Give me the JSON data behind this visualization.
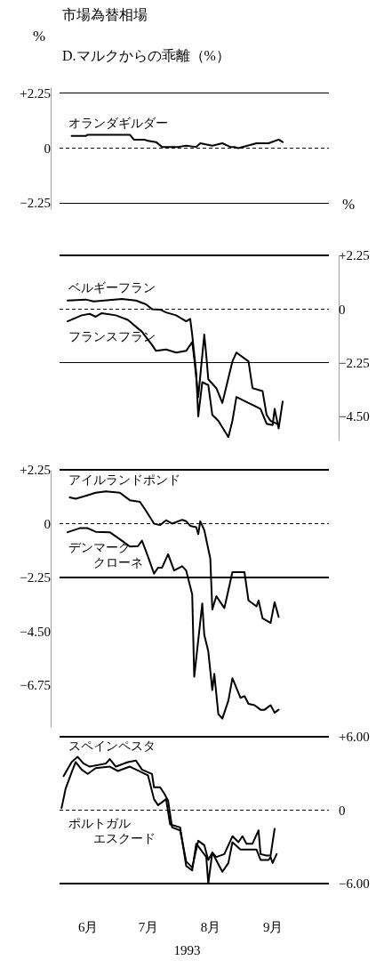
{
  "chart_data": [
    {
      "type": "line",
      "title": "市場為替相場",
      "subtitle": "D.マルクからの乖離（%）",
      "ylabel": "%",
      "xlim": [
        "1993-05-18",
        "1993-09-29"
      ],
      "ylim": [
        -2.5,
        2.5
      ],
      "yticks": [
        {
          "value": 2.25,
          "label": "+2.25"
        },
        0,
        {
          "value": -2.25,
          "label": "−2.25"
        }
      ],
      "tick_labels": "y",
      "ref_lines": [
        {
          "axis": "y",
          "value": 2.25,
          "color": "#000000",
          "line_style": "solid"
        },
        {
          "axis": "y",
          "value": 0,
          "color": "#000000",
          "line_style": "dashed"
        },
        {
          "axis": "y",
          "value": -2.25,
          "color": "#000000",
          "line_style": "solid"
        }
      ],
      "series": [
        {
          "name": "オランダギルダー",
          "color": "#000000",
          "x": [
            "1993-05-24",
            "1993-05-31",
            "1993-06-01",
            "1993-06-22",
            "1993-06-24",
            "1993-06-29",
            "1993-07-01",
            "1993-07-05",
            "1993-07-08",
            "1993-07-16",
            "1993-07-20",
            "1993-07-25",
            "1993-07-27",
            "1993-08-02",
            "1993-08-07",
            "1993-08-11",
            "1993-08-13",
            "1993-08-15",
            "1993-08-24",
            "1993-08-30",
            "1993-09-04",
            "1993-09-06"
          ],
          "values": [
            0.5,
            0.5,
            0.55,
            0.55,
            0.35,
            0.35,
            0.3,
            0.25,
            0.05,
            0.05,
            0.1,
            0.05,
            0.2,
            0.1,
            0.2,
            0.05,
            0.05,
            0,
            0.2,
            0.2,
            0.35,
            0.25
          ]
        }
      ]
    },
    {
      "type": "line",
      "y2label": "%",
      "xlim": [
        "1993-05-18",
        "1993-09-29"
      ],
      "y2lim": [
        -5.5,
        2.25
      ],
      "y2ticks": [
        {
          "value": 2.25,
          "label": "+2.25"
        },
        0,
        {
          "value": -2.25,
          "label": "−2.25"
        },
        {
          "value": -4.5,
          "label": "−4.50"
        }
      ],
      "ref_lines": [
        {
          "axis": "y2",
          "value": 2.25,
          "color": "#000000",
          "line_style": "solid"
        },
        {
          "axis": "y2",
          "value": 0,
          "color": "#000000",
          "line_style": "dashed"
        },
        {
          "axis": "y2",
          "value": -2.25,
          "color": "#000000",
          "line_style": "solid"
        }
      ],
      "series": [
        {
          "name": "ベルギーフラン",
          "color": "#000000",
          "axis": "y2",
          "x": [
            "1993-05-22",
            "1993-05-31",
            "1993-06-04",
            "1993-06-18",
            "1993-06-25",
            "1993-06-30",
            "1993-07-03",
            "1993-07-07",
            "1993-07-10",
            "1993-07-15",
            "1993-07-20",
            "1993-07-22",
            "1993-07-23",
            "1993-07-25",
            "1993-07-26",
            "1993-07-28",
            "1993-07-31",
            "1993-08-02",
            "1993-08-05",
            "1993-08-10",
            "1993-08-12",
            "1993-08-14",
            "1993-08-20",
            "1993-08-23",
            "1993-08-26",
            "1993-08-29",
            "1993-09-01",
            "1993-09-02",
            "1993-09-04",
            "1993-09-06"
          ],
          "values": [
            0.36,
            0.4,
            0.32,
            0.42,
            0.36,
            0.2,
            0,
            -0.02,
            -0.14,
            -0.26,
            -0.51,
            -0.41,
            -1.07,
            -2.69,
            -4.49,
            -3.06,
            -3.18,
            -4.43,
            -4.68,
            -5.36,
            -4.68,
            -3.68,
            -3.93,
            -4.05,
            -4.18,
            -4.8,
            -4.86,
            -4.18,
            -5.0,
            -3.87
          ]
        },
        {
          "name": "フランスフラン",
          "color": "#000000",
          "axis": "y2",
          "x": [
            "1993-05-22",
            "1993-05-29",
            "1993-06-02",
            "1993-06-05",
            "1993-06-08",
            "1993-06-15",
            "1993-06-21",
            "1993-06-28",
            "1993-07-03",
            "1993-07-05",
            "1993-07-10",
            "1993-07-15",
            "1993-07-20",
            "1993-07-23",
            "1993-07-24",
            "1993-07-26",
            "1993-07-29",
            "1993-07-30",
            "1993-07-31",
            "1993-08-04",
            "1993-08-07",
            "1993-08-12",
            "1993-08-14",
            "1993-08-20",
            "1993-08-22",
            "1993-08-27",
            "1993-08-29",
            "1993-08-31",
            "1993-09-03"
          ],
          "values": [
            -0.51,
            -0.26,
            -0.2,
            -0.32,
            -0.17,
            -0.26,
            -0.45,
            -0.95,
            -1.5,
            -1.75,
            -1.69,
            -1.82,
            -1.75,
            -1.38,
            -2.06,
            -3.68,
            -1.07,
            -1.94,
            -2.94,
            -3.31,
            -3.93,
            -2.19,
            -1.82,
            -2.19,
            -3.31,
            -3.43,
            -4.43,
            -4.68,
            -4.8
          ]
        }
      ]
    },
    {
      "type": "line",
      "xlim": [
        "1993-05-18",
        "1993-09-29"
      ],
      "ylim": [
        -8.5,
        2.25
      ],
      "yticks": [
        {
          "value": 2.25,
          "label": "+2.25"
        },
        0,
        {
          "value": -2.25,
          "label": "−2.25"
        },
        {
          "value": -4.5,
          "label": "−4.50"
        },
        {
          "value": -6.75,
          "label": "−6.75"
        }
      ],
      "tick_labels": "y",
      "ref_lines": [
        {
          "axis": "y",
          "value": 2.25,
          "color": "#000000",
          "line_style": "solid"
        },
        {
          "axis": "y",
          "value": 0,
          "color": "#000000",
          "line_style": "dashed"
        },
        {
          "axis": "y",
          "value": -2.25,
          "color": "#000000",
          "line_style": "solid"
        }
      ],
      "series": [
        {
          "name": "アイルランドポンド",
          "color": "#000000",
          "x": [
            "1993-05-23",
            "1993-05-26",
            "1993-05-31",
            "1993-06-05",
            "1993-06-10",
            "1993-06-17",
            "1993-06-20",
            "1993-06-22",
            "1993-06-27",
            "1993-06-30",
            "1993-07-04",
            "1993-07-07",
            "1993-07-10",
            "1993-07-13",
            "1993-07-18",
            "1993-07-20",
            "1993-07-22",
            "1993-07-25",
            "1993-07-26",
            "1993-07-27",
            "1993-07-29",
            "1993-08-01",
            "1993-08-02",
            "1993-08-04",
            "1993-08-08",
            "1993-08-12",
            "1993-08-18",
            "1993-08-20",
            "1993-08-24",
            "1993-08-25",
            "1993-08-27",
            "1993-08-31",
            "1993-09-02",
            "1993-09-04"
          ],
          "values": [
            1.1,
            1.04,
            1.16,
            1.29,
            1.35,
            1.29,
            1.1,
            0.98,
            0.91,
            0.54,
            0,
            -0.06,
            0.14,
            0,
            0.16,
            0.1,
            -0.09,
            -0.15,
            -0.44,
            0.1,
            -0.27,
            -1.46,
            -3.59,
            -3.03,
            -3.53,
            -2.03,
            -2.03,
            -3.21,
            -3.46,
            -3.21,
            -3.96,
            -4.15,
            -3.28,
            -3.9
          ]
        },
        {
          "name": "デンマーククローネ",
          "color": "#000000",
          "x": [
            "1993-05-22",
            "1993-05-28",
            "1993-06-01",
            "1993-06-05",
            "1993-06-12",
            "1993-06-18",
            "1993-06-22",
            "1993-06-26",
            "1993-06-28",
            "1993-06-30",
            "1993-07-04",
            "1993-07-06",
            "1993-07-08",
            "1993-07-11",
            "1993-07-14",
            "1993-07-18",
            "1993-07-20",
            "1993-07-23",
            "1993-07-24",
            "1993-07-28",
            "1993-07-29",
            "1993-07-31",
            "1993-08-02",
            "1993-08-03",
            "1993-08-05",
            "1993-08-07",
            "1993-08-10",
            "1993-08-12",
            "1993-08-16",
            "1993-08-18",
            "1993-08-20",
            "1993-08-23",
            "1993-08-26",
            "1993-08-28",
            "1993-08-31",
            "1993-09-02",
            "1993-09-04"
          ],
          "values": [
            -0.36,
            -0.19,
            -0.19,
            -0.34,
            -0.36,
            -0.71,
            -0.96,
            -0.94,
            -0.71,
            -1.15,
            -2.09,
            -1.84,
            -1.84,
            -1.28,
            -1.96,
            -1.78,
            -1.96,
            -2.96,
            -6.4,
            -3.34,
            -4.65,
            -5.34,
            -6.96,
            -6.28,
            -7.96,
            -8.15,
            -7.4,
            -6.46,
            -7.28,
            -7.21,
            -7.53,
            -7.59,
            -7.78,
            -7.78,
            -7.59,
            -7.9,
            -7.78
          ]
        }
      ]
    },
    {
      "type": "line",
      "xlabel": "1993",
      "xlim": [
        "1993-05-18",
        "1993-09-29"
      ],
      "xticks": [
        {
          "value": "1993-06-01",
          "label": "6月"
        },
        {
          "value": "1993-07-01",
          "label": "7月"
        },
        {
          "value": "1993-08-01",
          "label": "8月"
        },
        {
          "value": "1993-09-01",
          "label": "9月"
        }
      ],
      "y2lim": [
        -6,
        6
      ],
      "y2ticks": [
        {
          "value": 6,
          "label": "+6.00"
        },
        0,
        {
          "value": -6,
          "label": "−6.00"
        }
      ],
      "ref_lines": [
        {
          "axis": "y2",
          "value": 6,
          "color": "#000000",
          "line_style": "solid"
        },
        {
          "axis": "y2",
          "value": 0,
          "color": "#000000",
          "line_style": "dashed"
        },
        {
          "axis": "y2",
          "value": -6,
          "color": "#000000",
          "line_style": "solid"
        }
      ],
      "series": [
        {
          "name": "スペインペスタ",
          "color": "#000000",
          "axis": "y2",
          "x": [
            "1993-05-20",
            "1993-05-24",
            "1993-05-27",
            "1993-05-30",
            "1993-06-02",
            "1993-06-10",
            "1993-06-12",
            "1993-06-15",
            "1993-06-21",
            "1993-06-25",
            "1993-06-28",
            "1993-07-03",
            "1993-07-04",
            "1993-07-07",
            "1993-07-09",
            "1993-07-11",
            "1993-07-13",
            "1993-07-17",
            "1993-07-20",
            "1993-07-23",
            "1993-07-26",
            "1993-07-29",
            "1993-07-31",
            "1993-08-02",
            "1993-08-04",
            "1993-08-08",
            "1993-08-12",
            "1993-08-15",
            "1993-08-17",
            "1993-08-19",
            "1993-08-22",
            "1993-08-25",
            "1993-08-26",
            "1993-08-29",
            "1993-08-31",
            "1993-09-02"
          ],
          "values": [
            2.79,
            3.93,
            4.36,
            3.81,
            3.56,
            3.81,
            4.17,
            3.56,
            3.93,
            4.05,
            3.32,
            2.96,
            1.87,
            1.87,
            1.38,
            0.78,
            -1.41,
            -1.65,
            -4.19,
            -4.68,
            -2.5,
            -2.86,
            -4.07,
            -3.47,
            -3.83,
            -3.59,
            -2.13,
            -2.62,
            -2.13,
            -2.74,
            -2.74,
            -1.65,
            -3.59,
            -3.71,
            -3.71,
            -1.53
          ]
        },
        {
          "name": "ポルトガルエスクード",
          "color": "#000000",
          "axis": "y2",
          "x": [
            "1993-05-19",
            "1993-05-21",
            "1993-05-24",
            "1993-05-26",
            "1993-05-29",
            "1993-06-01",
            "1993-06-05",
            "1993-06-12",
            "1993-06-16",
            "1993-06-22",
            "1993-06-28",
            "1993-07-01",
            "1993-07-04",
            "1993-07-06",
            "1993-07-10",
            "1993-07-12",
            "1993-07-17",
            "1993-07-20",
            "1993-07-23",
            "1993-07-25",
            "1993-07-30",
            "1993-07-31",
            "1993-08-02",
            "1993-08-07",
            "1993-08-10",
            "1993-08-12",
            "1993-08-16",
            "1993-08-24",
            "1993-08-26",
            "1993-08-30",
            "1993-08-31",
            "1993-09-01",
            "1993-09-03"
          ],
          "values": [
            0.17,
            1.75,
            3.08,
            3.93,
            3.32,
            2.96,
            3.44,
            3.56,
            3.2,
            3.56,
            3.08,
            2.84,
            0.9,
            0.41,
            0.9,
            -1.16,
            -1.41,
            -4.56,
            -4.92,
            -2.74,
            -3.83,
            -6.0,
            -3.47,
            -5.04,
            -4.32,
            -2.62,
            -3.22,
            -3.22,
            -4.07,
            -4.07,
            -3.83,
            -4.32,
            -3.59
          ]
        }
      ]
    }
  ]
}
